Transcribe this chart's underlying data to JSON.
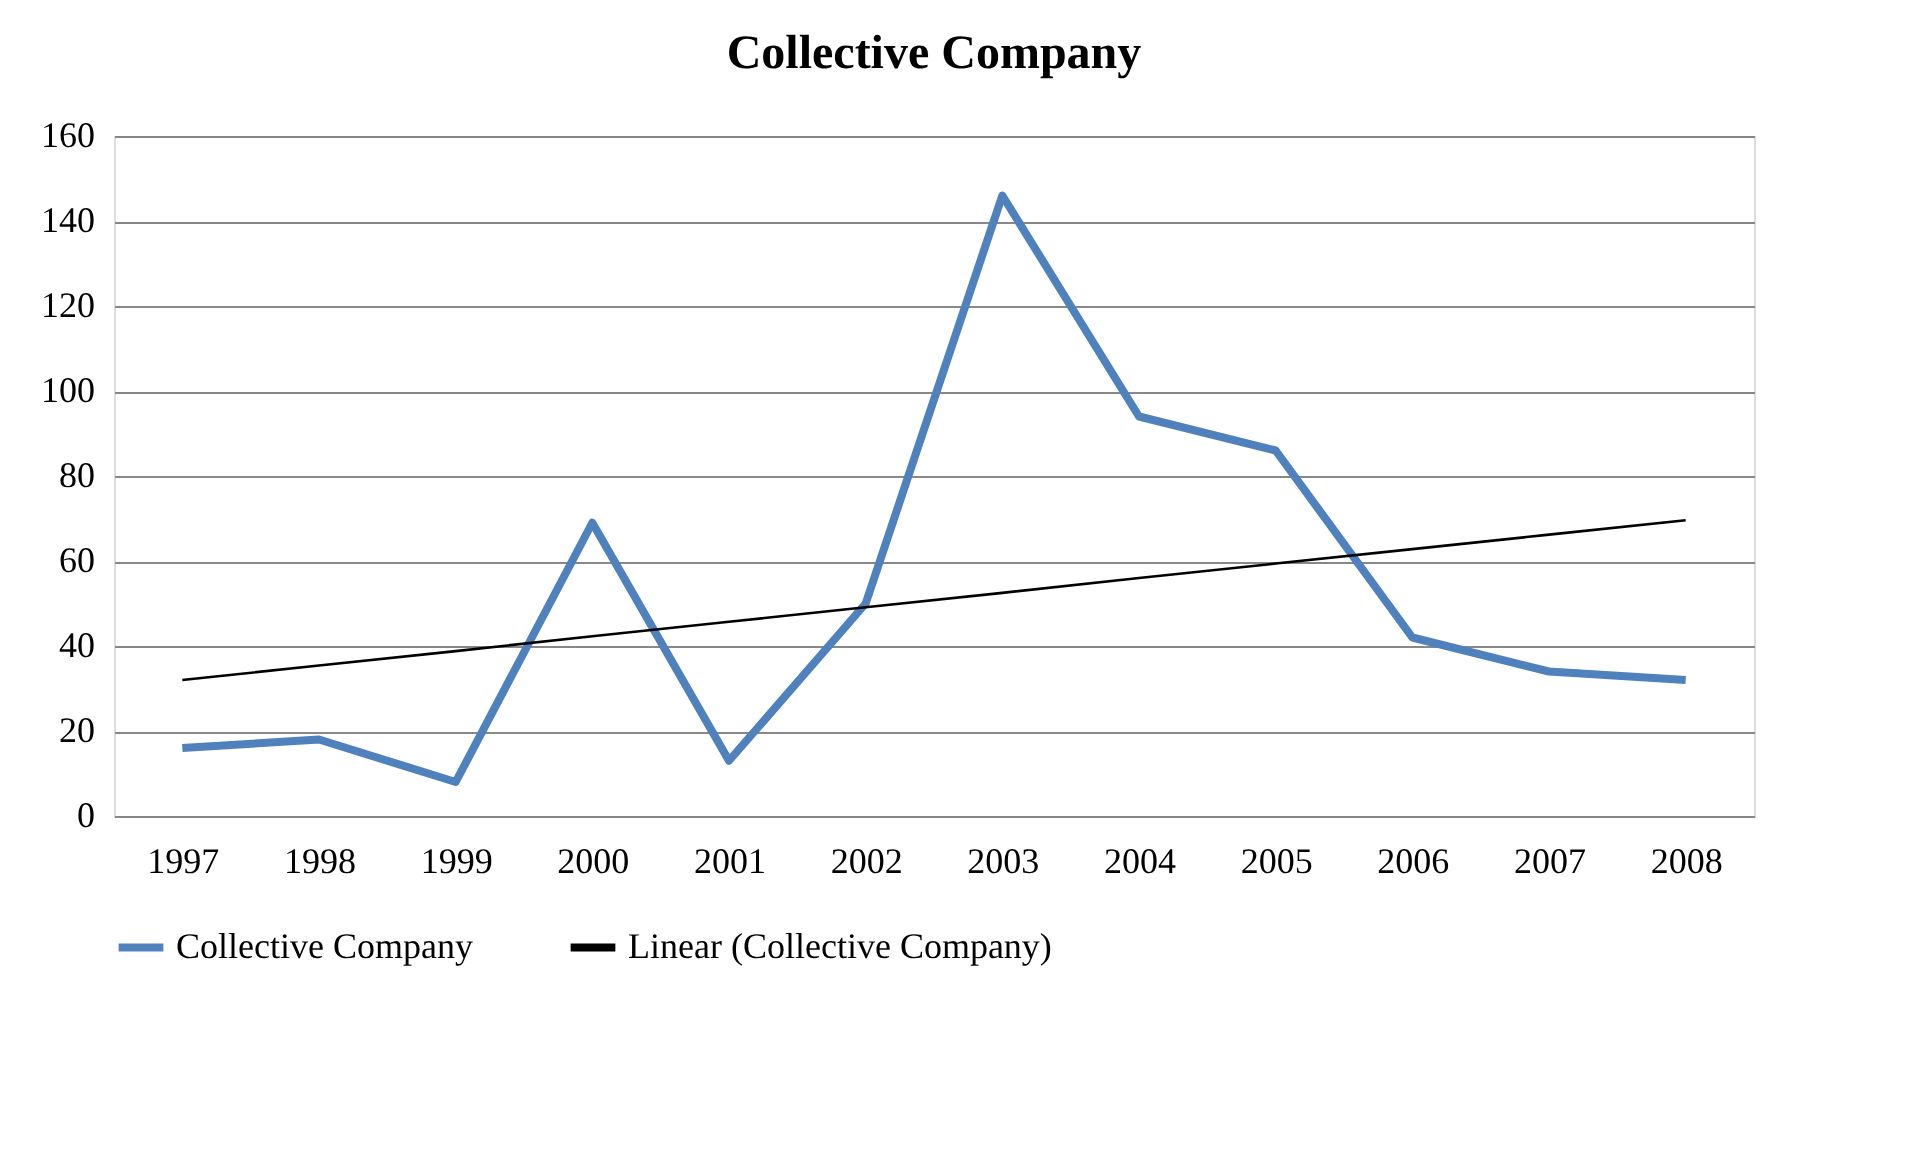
{
  "chart_data": {
    "type": "line",
    "title": "Collective Company",
    "categories": [
      "1997",
      "1998",
      "1999",
      "2000",
      "2001",
      "2002",
      "2003",
      "2004",
      "2005",
      "2006",
      "2007",
      "2008"
    ],
    "series": [
      {
        "name": "Collective Company",
        "color": "#4f81bd",
        "values": [
          16,
          18,
          8,
          69,
          13,
          50,
          146,
          94,
          86,
          42,
          34,
          32
        ]
      },
      {
        "name": "Linear (Collective Company)",
        "type": "line",
        "color": "#000000",
        "values": [
          32,
          35.4,
          38.8,
          42.3,
          45.7,
          49.1,
          52.5,
          56.0,
          59.4,
          62.8,
          66.2,
          69.6
        ]
      }
    ],
    "ylim": [
      0,
      160
    ],
    "yticks": [
      0,
      20,
      40,
      60,
      80,
      100,
      120,
      140,
      160
    ],
    "grid": "y",
    "legend": "bottom",
    "marker": "none",
    "line_style": "solid"
  }
}
